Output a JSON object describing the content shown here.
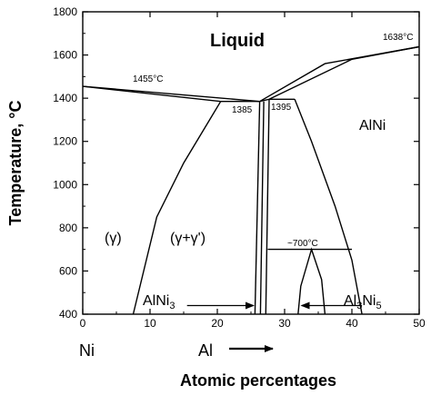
{
  "chart_data": {
    "type": "line",
    "xlabel": "Atomic percentages",
    "ylabel": "Temperature, °C",
    "xlim": [
      0,
      50
    ],
    "ylim": [
      400,
      1800
    ],
    "x_ticks": [
      "0",
      "10",
      "20",
      "30",
      "40",
      "50"
    ],
    "y_ticks": [
      "400",
      "600",
      "800",
      "1000",
      "1200",
      "1400",
      "1600",
      "1800"
    ],
    "element_left": "Ni",
    "element_right": "Al",
    "regions": {
      "liquid": "Liquid",
      "alni": "AlNi",
      "gamma": "(γ)",
      "gamma_prime": "(γ+γ')"
    },
    "annotations": {
      "t1455": "1455°C",
      "t1638": "1638°C",
      "t1385": "1385",
      "t1395": "1395",
      "t700": "~700°C",
      "alni3_base": "AlNi",
      "alni3_sub": "3",
      "al3ni5_base1": "Al",
      "al3ni5_sub1": "3",
      "al3ni5_base2": "Ni",
      "al3ni5_sub2": "5"
    },
    "series": [
      {
        "values": [
          [
            0,
            1455
          ],
          [
            26.3,
            1385
          ]
        ]
      },
      {
        "values": [
          [
            0,
            1455
          ],
          [
            20.5,
            1385
          ]
        ]
      },
      {
        "values": [
          [
            26.3,
            1385
          ],
          [
            36,
            1560
          ],
          [
            50,
            1638
          ]
        ]
      },
      {
        "values": [
          [
            27.7,
            1395
          ],
          [
            40,
            1580
          ],
          [
            50,
            1638
          ]
        ]
      },
      {
        "values": [
          [
            26.3,
            1385
          ],
          [
            27.7,
            1395
          ],
          [
            31.5,
            1395
          ]
        ]
      },
      {
        "values": [
          [
            20.5,
            1385
          ],
          [
            26.3,
            1385
          ]
        ]
      },
      {
        "values": [
          [
            20.5,
            1385
          ],
          [
            15,
            1100
          ],
          [
            11,
            850
          ],
          [
            7.5,
            400
          ]
        ]
      },
      {
        "values": [
          [
            26.3,
            1385
          ],
          [
            25.6,
            400
          ]
        ]
      },
      {
        "values": [
          [
            26.9,
            1385
          ],
          [
            26.4,
            400
          ]
        ]
      },
      {
        "values": [
          [
            27.7,
            1395
          ],
          [
            27.2,
            400
          ]
        ]
      },
      {
        "values": [
          [
            31.5,
            1395
          ],
          [
            34,
            1200
          ],
          [
            37.5,
            900
          ],
          [
            40,
            650
          ],
          [
            41.5,
            400
          ]
        ]
      },
      {
        "values": [
          [
            27.5,
            700
          ],
          [
            40,
            700
          ]
        ]
      },
      {
        "values": [
          [
            32,
            400
          ],
          [
            32.4,
            530
          ],
          [
            34,
            700
          ],
          [
            35.5,
            560
          ],
          [
            36,
            400
          ]
        ]
      }
    ],
    "arrows": [
      {
        "from": [
          15.5,
          440
        ],
        "to": [
          25.4,
          440
        ]
      },
      {
        "from": [
          41.5,
          440
        ],
        "to": [
          32.5,
          440
        ]
      }
    ]
  }
}
